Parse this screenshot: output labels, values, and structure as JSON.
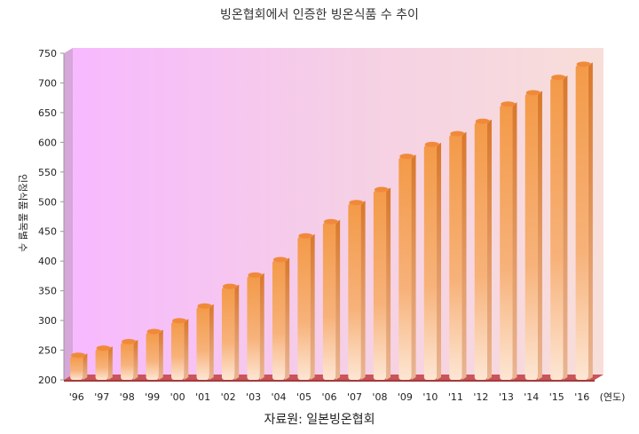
{
  "chart_data": {
    "type": "bar",
    "title": "빙온협회에서 인증한 빙온식품 수 추이",
    "source": "자료원: 일본빙온협회",
    "ylabel": "인정식품 품목별 수",
    "xunit": "(연도)",
    "categories": [
      "'96",
      "'97",
      "'98",
      "'99",
      "'00",
      "'01",
      "'02",
      "'03",
      "'04",
      "'05",
      "'06",
      "'07",
      "'08",
      "'09",
      "'10",
      "'11",
      "'12",
      "'13",
      "'14",
      "'15",
      "'16"
    ],
    "values": [
      240,
      252,
      263,
      280,
      298,
      323,
      356,
      375,
      401,
      441,
      465,
      497,
      519,
      575,
      595,
      613,
      634,
      663,
      682,
      708,
      730
    ],
    "ylim": [
      200,
      750
    ],
    "yticks": [
      200,
      250,
      300,
      350,
      400,
      450,
      500,
      550,
      600,
      650,
      700,
      750
    ],
    "grid": false,
    "colors": {
      "bar": "#f3a25a",
      "bar_dark": "#d9782a",
      "floor": "#c0504d",
      "wall_left": "#f6c1ff",
      "wall_right": "#f8dcd8"
    }
  }
}
